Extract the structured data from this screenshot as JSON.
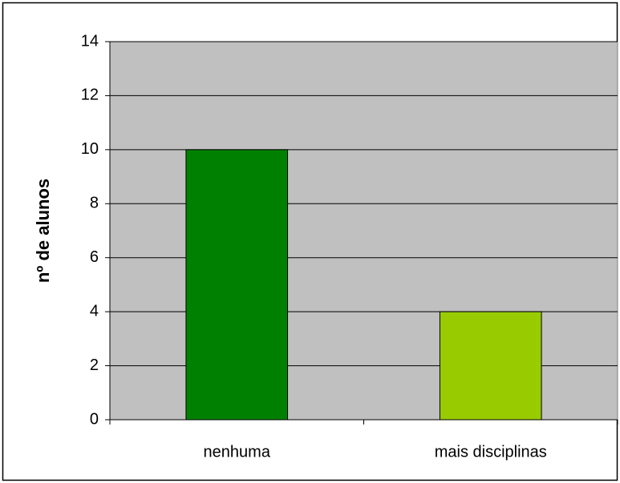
{
  "chart_data": {
    "type": "bar",
    "y_label": "nº de alunos",
    "categories": [
      "nenhuma",
      "mais disciplinas"
    ],
    "values": [
      10,
      4
    ],
    "colors": [
      "#008000",
      "#99cc00"
    ],
    "ylim": [
      0,
      14
    ],
    "yticks": [
      0,
      2,
      4,
      6,
      8,
      10,
      12,
      14
    ],
    "grid": true
  }
}
